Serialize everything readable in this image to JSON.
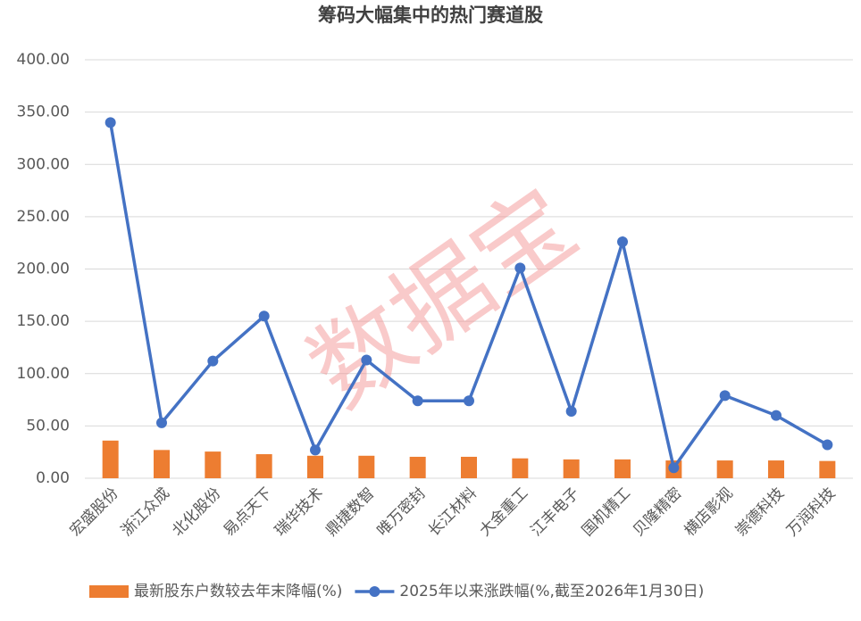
{
  "chart_data": {
    "type": "combo",
    "title": "筹码大幅集中的热门赛道股",
    "watermark": "数据宝",
    "categories": [
      "宏盛股份",
      "浙江众成",
      "北化股份",
      "易点天下",
      "瑞华技术",
      "鼎捷数智",
      "唯万密封",
      "长江材料",
      "大金重工",
      "江丰电子",
      "国机精工",
      "贝隆精密",
      "横店影视",
      "崇德科技",
      "万润科技"
    ],
    "series": [
      {
        "name": "最新股东户数较去年末降幅(%)",
        "type": "bar",
        "color": "#ed7d31",
        "values": [
          36,
          27,
          25.5,
          23,
          21.5,
          21.5,
          20.5,
          20.5,
          19,
          18,
          18,
          17,
          17,
          17,
          16.5
        ]
      },
      {
        "name": "2025年以来涨跌幅(%,截至2026年1月30日)",
        "type": "line",
        "color": "#4472c4",
        "values": [
          340,
          53,
          112,
          155,
          27,
          113,
          74,
          74,
          201,
          64,
          226,
          10,
          79,
          60,
          32
        ]
      }
    ],
    "ylim": [
      0,
      400
    ],
    "yticks": [
      {
        "value": 0,
        "label": "0.00"
      },
      {
        "value": 50,
        "label": "50.00"
      },
      {
        "value": 100,
        "label": "100.00"
      },
      {
        "value": 150,
        "label": "150.00"
      },
      {
        "value": 200,
        "label": "200.00"
      },
      {
        "value": 250,
        "label": "250.00"
      },
      {
        "value": 300,
        "label": "300.00"
      },
      {
        "value": 350,
        "label": "350.00"
      },
      {
        "value": 400,
        "label": "400.00"
      }
    ],
    "grid": true,
    "legend": "bottom"
  }
}
